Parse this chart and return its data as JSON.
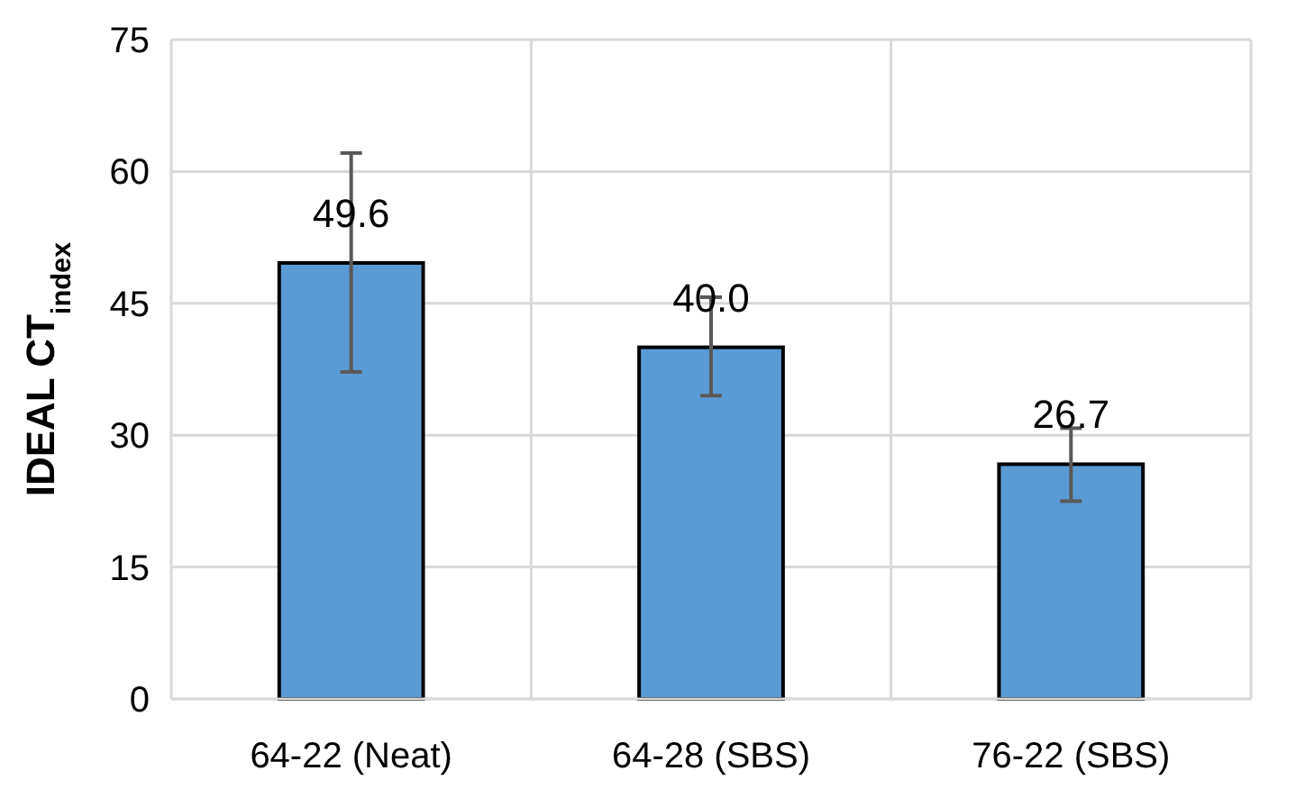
{
  "chart_data": {
    "type": "bar",
    "ylabel": "IDEAL CT$_{index}$",
    "categories": [
      "64-22 (Neat)",
      "64-28 (SBS)",
      "76-22 (SBS)"
    ],
    "values": [
      49.6,
      40.0,
      26.7
    ],
    "errors": [
      [
        37.2,
        62.1
      ],
      [
        34.5,
        45.7
      ],
      [
        22.5,
        30.8
      ]
    ],
    "value_labels": [
      "49.6",
      "40.0",
      "26.7"
    ],
    "color": "#5b9bd5",
    "ylim": [
      0,
      75
    ],
    "yticks": [
      0,
      15,
      30,
      45,
      60,
      75
    ],
    "grid": true
  }
}
